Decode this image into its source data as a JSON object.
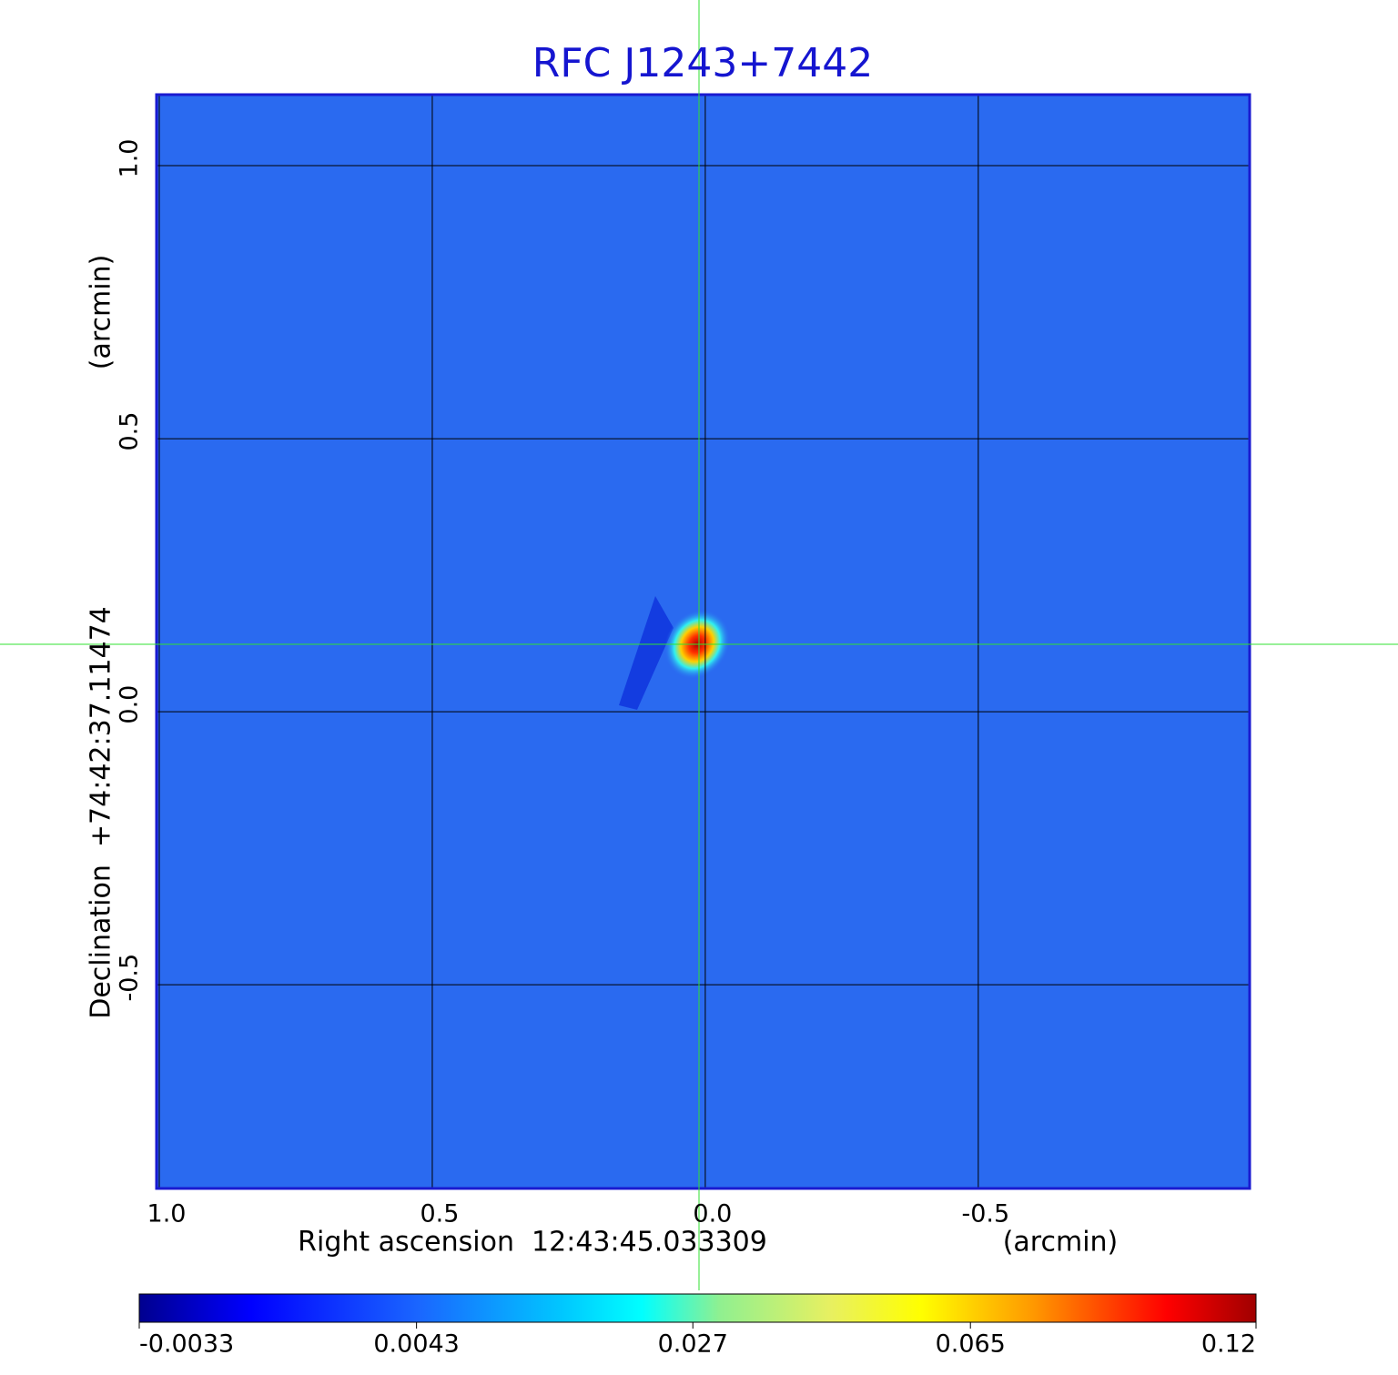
{
  "chart_data": {
    "type": "image",
    "title": "RFC J1243+7442",
    "x_label": "Right ascension  12:43:45.033309",
    "x_unit": "(arcmin)",
    "y_label": "Declination  +74:42:37.11474",
    "y_unit": "(arcmin)",
    "xlim": [
      1.005,
      -0.997
    ],
    "xticks": [
      {
        "value": 1,
        "label": "1.0"
      },
      0.5,
      {
        "value": 0,
        "label": "0.0"
      },
      -0.5
    ],
    "ylim": [
      -0.873,
      1.13
    ],
    "yticks": [
      {
        "value": 1,
        "label": "1.0"
      },
      0.5,
      {
        "value": 0,
        "label": "0.0"
      },
      -0.5
    ],
    "grid": true,
    "colorbar": {
      "scale": "sqrt",
      "lim": [
        -0.0033,
        0.12
      ],
      "ticks": [
        -0.0033,
        0.0043,
        0.027,
        0.065,
        0.12
      ]
    }
  }
}
